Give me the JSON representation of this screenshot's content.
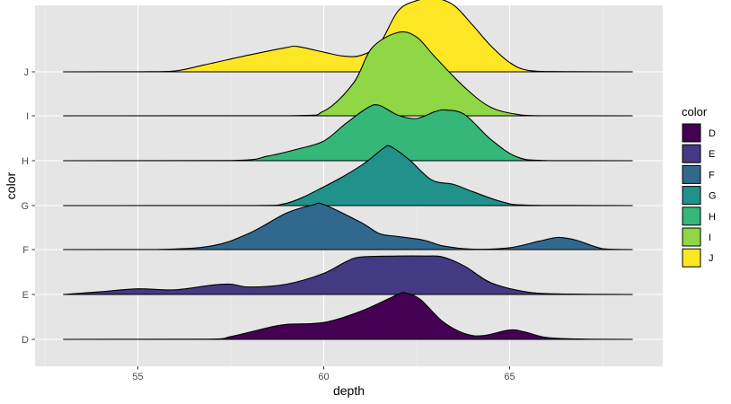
{
  "chart_data": {
    "type": "ridgeline",
    "x_variable": "depth",
    "y_variable": "color",
    "xlabel": "depth",
    "ylabel": "color",
    "xlim": [
      52.6,
      68.9
    ],
    "x_ticks": [
      55,
      60,
      65
    ],
    "x_tick_labels": [
      "55",
      "60",
      "65"
    ],
    "categories": [
      "D",
      "E",
      "F",
      "G",
      "H",
      "I",
      "J"
    ],
    "legend": {
      "title": "color",
      "placement": "right",
      "items": [
        "D",
        "E",
        "F",
        "G",
        "H",
        "I",
        "J"
      ]
    },
    "grid": true,
    "panel_background": "#e5e5e5",
    "colors": {
      "D": "#440154",
      "E": "#443983",
      "F": "#31688e",
      "G": "#21918c",
      "H": "#35b779",
      "I": "#8fd744",
      "J": "#fde725"
    },
    "series": [
      {
        "name": "D",
        "points": [
          [
            53,
            0
          ],
          [
            56.8,
            0.003
          ],
          [
            57.5,
            0.06
          ],
          [
            58.5,
            0.25
          ],
          [
            59,
            0.32
          ],
          [
            60,
            0.36
          ],
          [
            61,
            0.6
          ],
          [
            62,
            0.96
          ],
          [
            62.2,
            0.99
          ],
          [
            62.6,
            0.85
          ],
          [
            63.2,
            0.38
          ],
          [
            63.8,
            0.12
          ],
          [
            64.3,
            0.08
          ],
          [
            65,
            0.2
          ],
          [
            65.4,
            0.16
          ],
          [
            66,
            0.04
          ],
          [
            67,
            0.005
          ],
          [
            68.3,
            0
          ]
        ]
      },
      {
        "name": "E",
        "points": [
          [
            53,
            0
          ],
          [
            54,
            0.06
          ],
          [
            55,
            0.12
          ],
          [
            56,
            0.1
          ],
          [
            57,
            0.2
          ],
          [
            57.5,
            0.22
          ],
          [
            58,
            0.16
          ],
          [
            59,
            0.22
          ],
          [
            60,
            0.45
          ],
          [
            60.6,
            0.7
          ],
          [
            61,
            0.8
          ],
          [
            62,
            0.82
          ],
          [
            62.7,
            0.82
          ],
          [
            63.2,
            0.8
          ],
          [
            63.8,
            0.6
          ],
          [
            64.5,
            0.25
          ],
          [
            65.5,
            0.05
          ],
          [
            66.5,
            0.01
          ],
          [
            68.3,
            0
          ]
        ]
      },
      {
        "name": "F",
        "points": [
          [
            53,
            0
          ],
          [
            55.5,
            0.002
          ],
          [
            57,
            0.08
          ],
          [
            58,
            0.35
          ],
          [
            59,
            0.78
          ],
          [
            59.7,
            0.95
          ],
          [
            60,
            0.96
          ],
          [
            61,
            0.58
          ],
          [
            61.5,
            0.34
          ],
          [
            62,
            0.28
          ],
          [
            62.7,
            0.2
          ],
          [
            63.2,
            0.08
          ],
          [
            64,
            0.01
          ],
          [
            65,
            0.04
          ],
          [
            65.8,
            0.18
          ],
          [
            66.3,
            0.26
          ],
          [
            66.8,
            0.2
          ],
          [
            67.5,
            0.02
          ],
          [
            68.3,
            0
          ]
        ]
      },
      {
        "name": "G",
        "points": [
          [
            53,
            0
          ],
          [
            58,
            0.002
          ],
          [
            59,
            0.05
          ],
          [
            60,
            0.4
          ],
          [
            61,
            0.85
          ],
          [
            61.6,
            1.22
          ],
          [
            61.8,
            1.26
          ],
          [
            62.3,
            0.98
          ],
          [
            62.9,
            0.55
          ],
          [
            63.5,
            0.45
          ],
          [
            64,
            0.3
          ],
          [
            64.8,
            0.08
          ],
          [
            65.5,
            0.01
          ],
          [
            68.3,
            0
          ]
        ]
      },
      {
        "name": "H",
        "points": [
          [
            53,
            0
          ],
          [
            57.5,
            0.003
          ],
          [
            58.5,
            0.1
          ],
          [
            59.3,
            0.25
          ],
          [
            60,
            0.42
          ],
          [
            60.6,
            0.8
          ],
          [
            61.2,
            1.14
          ],
          [
            61.5,
            1.18
          ],
          [
            62,
            0.97
          ],
          [
            62.5,
            0.9
          ],
          [
            63,
            1.05
          ],
          [
            63.3,
            1.08
          ],
          [
            63.8,
            0.98
          ],
          [
            64.5,
            0.45
          ],
          [
            65.2,
            0.08
          ],
          [
            66,
            0.003
          ],
          [
            68.3,
            0
          ]
        ]
      },
      {
        "name": "I",
        "points": [
          [
            53,
            0
          ],
          [
            59,
            0.002
          ],
          [
            60,
            0.1
          ],
          [
            60.8,
            0.7
          ],
          [
            61.3,
            1.45
          ],
          [
            62,
            1.78
          ],
          [
            62.5,
            1.68
          ],
          [
            63,
            1.25
          ],
          [
            63.8,
            0.6
          ],
          [
            64.5,
            0.18
          ],
          [
            65.3,
            0.02
          ],
          [
            66,
            0.001
          ],
          [
            68.3,
            0
          ]
        ]
      },
      {
        "name": "J",
        "points": [
          [
            53,
            0
          ],
          [
            55,
            0.002
          ],
          [
            56,
            0.02
          ],
          [
            56.8,
            0.15
          ],
          [
            58,
            0.36
          ],
          [
            59,
            0.52
          ],
          [
            59.3,
            0.54
          ],
          [
            60,
            0.42
          ],
          [
            60.5,
            0.34
          ],
          [
            61,
            0.35
          ],
          [
            61.5,
            0.6
          ],
          [
            62,
            1.3
          ],
          [
            62.5,
            1.52
          ],
          [
            63,
            1.57
          ],
          [
            63.5,
            1.42
          ],
          [
            64,
            1.0
          ],
          [
            64.5,
            0.55
          ],
          [
            65,
            0.2
          ],
          [
            65.5,
            0.03
          ],
          [
            66.5,
            0.003
          ],
          [
            68.3,
            0
          ]
        ]
      }
    ]
  }
}
